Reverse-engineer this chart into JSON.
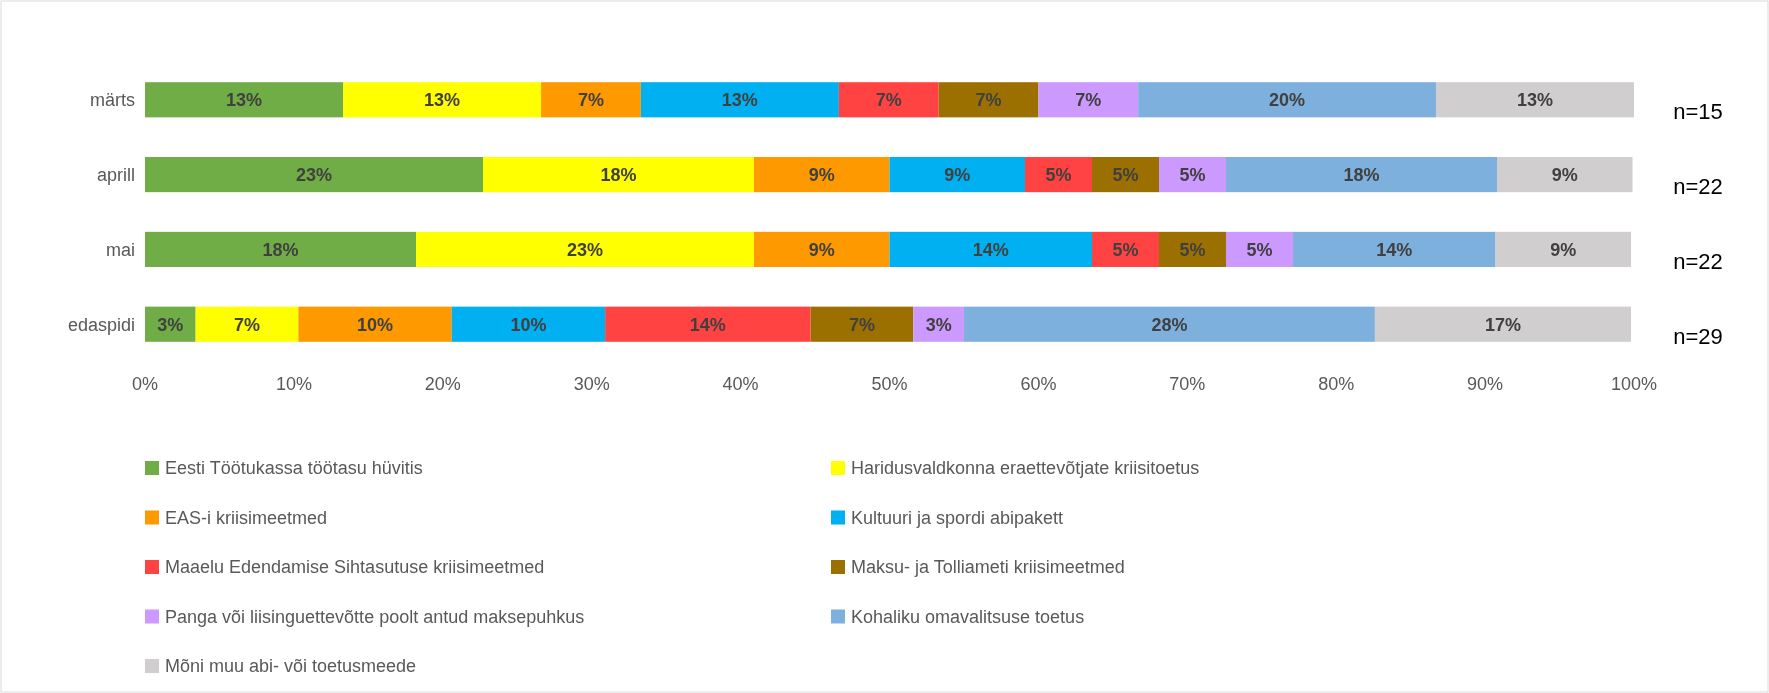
{
  "chart_data": {
    "type": "bar",
    "orientation": "horizontal",
    "stacked": true,
    "categories": [
      "märts",
      "aprill",
      "mai",
      "edaspidi"
    ],
    "xlim": [
      0,
      100
    ],
    "xticks": [
      {
        "value": 0,
        "label": "0%"
      },
      {
        "value": 10,
        "label": "10%"
      },
      {
        "value": 20,
        "label": "20%"
      },
      {
        "value": 30,
        "label": "30%"
      },
      {
        "value": 40,
        "label": "40%"
      },
      {
        "value": 50,
        "label": "50%"
      },
      {
        "value": 60,
        "label": "60%"
      },
      {
        "value": 70,
        "label": "70%"
      },
      {
        "value": 80,
        "label": "80%"
      },
      {
        "value": 90,
        "label": "90%"
      },
      {
        "value": 100,
        "label": "100%"
      }
    ],
    "grid": false,
    "legend": "bottom",
    "series": [
      {
        "name": "Eesti Töötukassa töötasu hüvitis",
        "color": "#70ad47",
        "values": [
          13.3,
          22.7,
          18.2,
          3.4
        ],
        "value_labels": [
          "13%",
          "23%",
          "18%",
          "3%"
        ]
      },
      {
        "name": "Haridusvaldkonna eraettevõtjate kriisitoetus",
        "color": "#ffff00",
        "values": [
          13.3,
          18.2,
          22.7,
          6.9
        ],
        "value_labels": [
          "13%",
          "18%",
          "23%",
          "7%"
        ]
      },
      {
        "name": "EAS-i kriisimeetmed",
        "color": "#ff9900",
        "values": [
          6.7,
          9.1,
          9.1,
          10.3
        ],
        "value_labels": [
          "7%",
          "9%",
          "9%",
          "10%"
        ]
      },
      {
        "name": "Kultuuri ja spordi abipakett",
        "color": "#00b0f0",
        "values": [
          13.3,
          9.1,
          13.6,
          10.3
        ],
        "value_labels": [
          "13%",
          "9%",
          "14%",
          "10%"
        ]
      },
      {
        "name": "Maaelu Edendamise Sihtasutuse kriisimeetmed",
        "color": "#ff4343",
        "values": [
          6.7,
          4.5,
          4.5,
          13.8
        ],
        "value_labels": [
          "7%",
          "5%",
          "5%",
          "14%"
        ]
      },
      {
        "name": "Maksu- ja Tolliameti kriisimeetmed",
        "color": "#9c7000",
        "values": [
          6.7,
          4.5,
          4.5,
          6.9
        ],
        "value_labels": [
          "7%",
          "5%",
          "5%",
          "7%"
        ]
      },
      {
        "name": "Panga või liisinguettevõtte poolt antud maksepuhkus",
        "color": "#cc99ff",
        "values": [
          6.7,
          4.5,
          4.5,
          3.4
        ],
        "value_labels": [
          "7%",
          "5%",
          "5%",
          "3%"
        ]
      },
      {
        "name": "Kohaliku omavalitsuse toetus",
        "color": "#7eb0de",
        "values": [
          20,
          18.2,
          13.6,
          27.6
        ],
        "value_labels": [
          "20%",
          "18%",
          "14%",
          "28%"
        ]
      },
      {
        "name": "Mõni muu abi- või toetusmeede",
        "color": "#d0cece",
        "values": [
          13.3,
          9.1,
          9.1,
          17.2
        ],
        "value_labels": [
          "13%",
          "9%",
          "9%",
          "17%"
        ]
      }
    ],
    "annotations": [
      "n=15",
      "n=22",
      "n=22",
      "n=29"
    ]
  }
}
